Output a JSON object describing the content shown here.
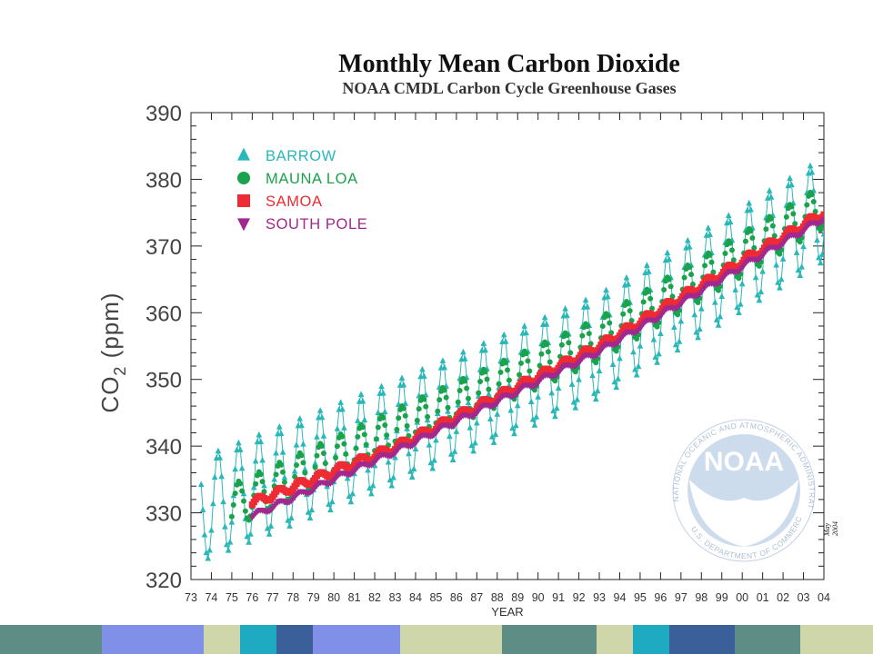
{
  "chart_data": {
    "type": "scatter",
    "title": "Monthly Mean Carbon Dioxide",
    "subtitle": "NOAA CMDL Carbon Cycle Greenhouse Gases",
    "xlabel": "YEAR",
    "ylabel": "CO2 (ppm)",
    "ylabel_main": "CO",
    "ylabel_sub": "2",
    "ylabel_tail": " (ppm)",
    "xlim": [
      1973,
      2004
    ],
    "ylim": [
      320,
      390
    ],
    "x_tick_labels": [
      "73",
      "74",
      "75",
      "76",
      "77",
      "78",
      "79",
      "80",
      "81",
      "82",
      "83",
      "84",
      "85",
      "86",
      "87",
      "88",
      "89",
      "90",
      "91",
      "92",
      "93",
      "94",
      "95",
      "96",
      "97",
      "98",
      "99",
      "00",
      "01",
      "02",
      "03",
      "04"
    ],
    "y_ticks": [
      320,
      330,
      340,
      350,
      360,
      370,
      380,
      390
    ],
    "legend_position": "top-left",
    "series": [
      {
        "name": "BARROW",
        "marker": "triangle-up",
        "color": "#2ab7b7",
        "connected": true,
        "start": 1973.5,
        "end": 2004.0,
        "trend": [
          [
            1973.5,
            330.5
          ],
          [
            1983.0,
            342.0
          ],
          [
            1993.0,
            355.0
          ],
          [
            2004.0,
            375.5
          ]
        ],
        "amplitude": 15.5
      },
      {
        "name": "MAUNA LOA",
        "marker": "circle",
        "color": "#1aa34a",
        "connected": false,
        "start": 1975.0,
        "end": 2004.0,
        "trend": [
          [
            1975.0,
            331.0
          ],
          [
            1983.0,
            342.3
          ],
          [
            1993.0,
            356.0
          ],
          [
            2004.0,
            376.0
          ]
        ],
        "amplitude": 6.5
      },
      {
        "name": "SAMOA",
        "marker": "square",
        "color": "#ee2a33",
        "connected": false,
        "start": 1976.0,
        "end": 2004.0,
        "trend": [
          [
            1976.0,
            331.5
          ],
          [
            1983.0,
            339.8
          ],
          [
            1993.0,
            355.0
          ],
          [
            2004.0,
            375.0
          ]
        ],
        "amplitude": 1.2
      },
      {
        "name": "SOUTH POLE",
        "marker": "triangle-down",
        "color": "#a0288f",
        "connected": false,
        "start": 1976.0,
        "end": 2004.0,
        "trend": [
          [
            1976.0,
            329.5
          ],
          [
            1983.0,
            339.2
          ],
          [
            1993.0,
            354.2
          ],
          [
            2004.0,
            374.2
          ]
        ],
        "amplitude": 0.8
      }
    ]
  },
  "logo": {
    "name": "NOAA",
    "ring_text": "NATIONAL OCEANIC AND ATMOSPHERIC ADMINISTRATION",
    "bottom_text": "U.S. DEPARTMENT OF COMMERCE",
    "color": "#9fb8d6"
  },
  "date_stamp": "May 2004",
  "footer_colors": [
    "#5e8d86",
    "#8090e8",
    "#cfd6a9",
    "#1eaac0",
    "#3a5f99",
    "#8090e8",
    "#cfd6a9",
    "#5e8d86",
    "#cfd6a9",
    "#1eaac0",
    "#3a5f99",
    "#5e8d86",
    "#cfd6a9"
  ]
}
